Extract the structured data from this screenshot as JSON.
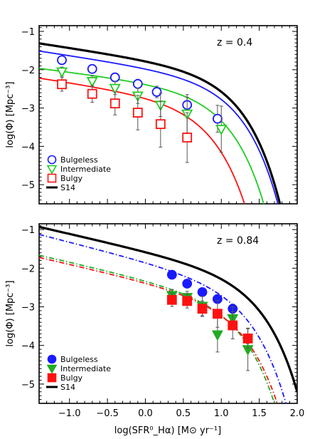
{
  "chart_data": [
    {
      "type": "line",
      "panel": "top",
      "annotation": "z  =  0.4",
      "ylabel": "log(Φ)  [Mpc⁻³]",
      "xlim": [
        -1.4,
        2.0
      ],
      "ylim": [
        -5.5,
        -0.85
      ],
      "y_ticks": [
        -1,
        -2,
        -3,
        -4,
        -5
      ],
      "legend_position": "bottom-left",
      "legend": [
        "Bulgeless",
        "Intermediate",
        "Bulgy",
        "S14"
      ],
      "colors": {
        "Bulgeless": "#1a1aff",
        "Intermediate": "#22cc22",
        "Bulgy": "#ff1111",
        "S14": "#000000"
      },
      "series": [
        {
          "name": "Bulgeless",
          "marker": "open-circle",
          "line": "solid",
          "points": [
            {
              "x": -1.1,
              "y": -1.75,
              "err": 0.08
            },
            {
              "x": -0.7,
              "y": -1.98,
              "err": 0.09
            },
            {
              "x": -0.4,
              "y": -2.2,
              "err": 0.1
            },
            {
              "x": -0.1,
              "y": -2.37,
              "err": 0.12
            },
            {
              "x": 0.15,
              "y": -2.58,
              "err": 0.15
            },
            {
              "x": 0.55,
              "y": -2.92,
              "err": 0.2
            },
            {
              "x": 0.95,
              "y": -3.28,
              "err": 0.35
            }
          ],
          "curve": {
            "logphi_star": -2.2,
            "alpha": -1.3,
            "xstar": 0.9
          }
        },
        {
          "name": "Intermediate",
          "marker": "open-triangle-down",
          "line": "solid",
          "points": [
            {
              "x": -1.1,
              "y": -2.05,
              "err": 0.12
            },
            {
              "x": -0.7,
              "y": -2.3,
              "err": 0.14
            },
            {
              "x": -0.4,
              "y": -2.48,
              "err": 0.17
            },
            {
              "x": -0.1,
              "y": -2.68,
              "err": 0.2
            },
            {
              "x": 0.2,
              "y": -2.92,
              "err": 0.3
            },
            {
              "x": 0.55,
              "y": -3.15,
              "err": 0.5
            },
            {
              "x": 1.0,
              "y": -3.55,
              "err": 0.6
            }
          ],
          "curve": {
            "logphi_star": -2.5,
            "alpha": -1.25,
            "xstar": 0.75
          }
        },
        {
          "name": "Bulgy",
          "marker": "open-square",
          "line": "solid",
          "points": [
            {
              "x": -1.1,
              "y": -2.38,
              "err": 0.18
            },
            {
              "x": -0.7,
              "y": -2.63,
              "err": 0.22
            },
            {
              "x": -0.4,
              "y": -2.88,
              "err": 0.3
            },
            {
              "x": -0.1,
              "y": -3.12,
              "err": 0.45
            },
            {
              "x": 0.2,
              "y": -3.42,
              "err": 0.6
            },
            {
              "x": 0.55,
              "y": -3.77,
              "err": 0.65
            }
          ],
          "curve": {
            "logphi_star": -2.8,
            "alpha": -1.3,
            "xstar": 0.55
          }
        },
        {
          "name": "S14",
          "marker": "none",
          "line": "solid-thick",
          "curve": {
            "logphi_star": -2.0,
            "alpha": -1.3,
            "xstar": 0.9
          }
        }
      ]
    },
    {
      "type": "line",
      "panel": "bottom",
      "annotation": "z  =  0.84",
      "xlabel": "log(SFR⁰_Hα)  [M⊙ yr⁻¹]",
      "ylabel": "log(Φ)  [Mpc⁻³]",
      "xlim": [
        -1.4,
        2.0
      ],
      "ylim": [
        -5.5,
        -0.85
      ],
      "x_ticks": [
        -1.0,
        -0.5,
        0.0,
        0.5,
        1.0,
        1.5,
        2.0
      ],
      "x_tick_labels": [
        "−1.0",
        "−0.5",
        "0.0",
        "0.5",
        "1.0",
        "1.5",
        "2.0"
      ],
      "y_ticks": [
        -1,
        -2,
        -3,
        -4,
        -5
      ],
      "legend_position": "bottom-left",
      "legend": [
        "Bulgeless",
        "Intermediate",
        "Bulgy",
        "S14"
      ],
      "colors": {
        "Bulgeless": "#1a1aff",
        "Intermediate": "#22aa22",
        "Bulgy": "#ff1111",
        "S14": "#000000"
      },
      "series": [
        {
          "name": "Bulgeless",
          "marker": "filled-circle",
          "line": "dash-dot",
          "points": [
            {
              "x": 0.35,
              "y": -2.17,
              "err": 0.05
            },
            {
              "x": 0.55,
              "y": -2.4,
              "err": 0.06
            },
            {
              "x": 0.75,
              "y": -2.62,
              "err": 0.08
            },
            {
              "x": 0.95,
              "y": -2.8,
              "err": 0.1
            },
            {
              "x": 1.15,
              "y": -3.05,
              "err": 0.12
            }
          ],
          "curve": {
            "logphi_star": -2.35,
            "alpha": -1.5,
            "xstar": 1.05
          }
        },
        {
          "name": "Intermediate",
          "marker": "filled-triangle-down",
          "line": "dash-dot",
          "points": [
            {
              "x": 0.35,
              "y": -2.7,
              "err": 0.15
            },
            {
              "x": 0.55,
              "y": -2.75,
              "err": 0.15
            },
            {
              "x": 0.75,
              "y": -2.98,
              "err": 0.25
            },
            {
              "x": 0.95,
              "y": -3.72,
              "err": 0.45
            },
            {
              "x": 1.15,
              "y": -3.3,
              "err": 0.3
            },
            {
              "x": 1.35,
              "y": -4.1,
              "err": 0.55
            }
          ],
          "curve": {
            "logphi_star": -2.72,
            "alpha": -1.45,
            "xstar": 0.95
          }
        },
        {
          "name": "Bulgy",
          "marker": "filled-square",
          "line": "dash-dot",
          "points": [
            {
              "x": 0.35,
              "y": -2.82,
              "err": 0.17
            },
            {
              "x": 0.55,
              "y": -2.85,
              "err": 0.18
            },
            {
              "x": 0.75,
              "y": -3.05,
              "err": 0.2
            },
            {
              "x": 0.95,
              "y": -3.18,
              "err": 0.35
            },
            {
              "x": 1.15,
              "y": -3.48,
              "err": 0.35
            },
            {
              "x": 1.35,
              "y": -3.82,
              "err": 0.25
            }
          ],
          "curve": {
            "logphi_star": -2.8,
            "alpha": -1.45,
            "xstar": 1.0
          }
        },
        {
          "name": "S14",
          "marker": "none",
          "line": "solid-thick",
          "curve": {
            "logphi_star": -2.1,
            "alpha": -1.45,
            "xstar": 1.2
          }
        }
      ]
    }
  ]
}
